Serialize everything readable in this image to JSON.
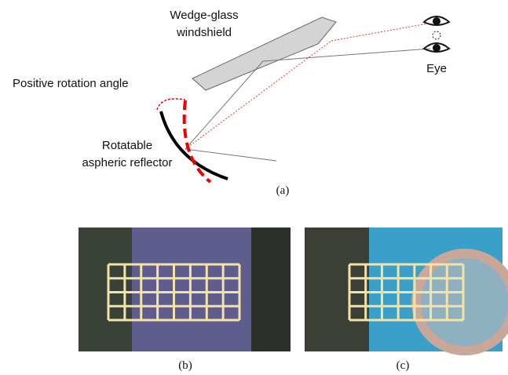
{
  "diagram": {
    "windshield_label": [
      "Wedge-glass",
      "windshield"
    ],
    "eye_label": "Eye",
    "rotation_label": "Positive rotation angle",
    "reflector_label": [
      "Rotatable",
      "aspheric reflector"
    ],
    "panels": [
      "(a)",
      "(b)",
      "(c)"
    ]
  }
}
